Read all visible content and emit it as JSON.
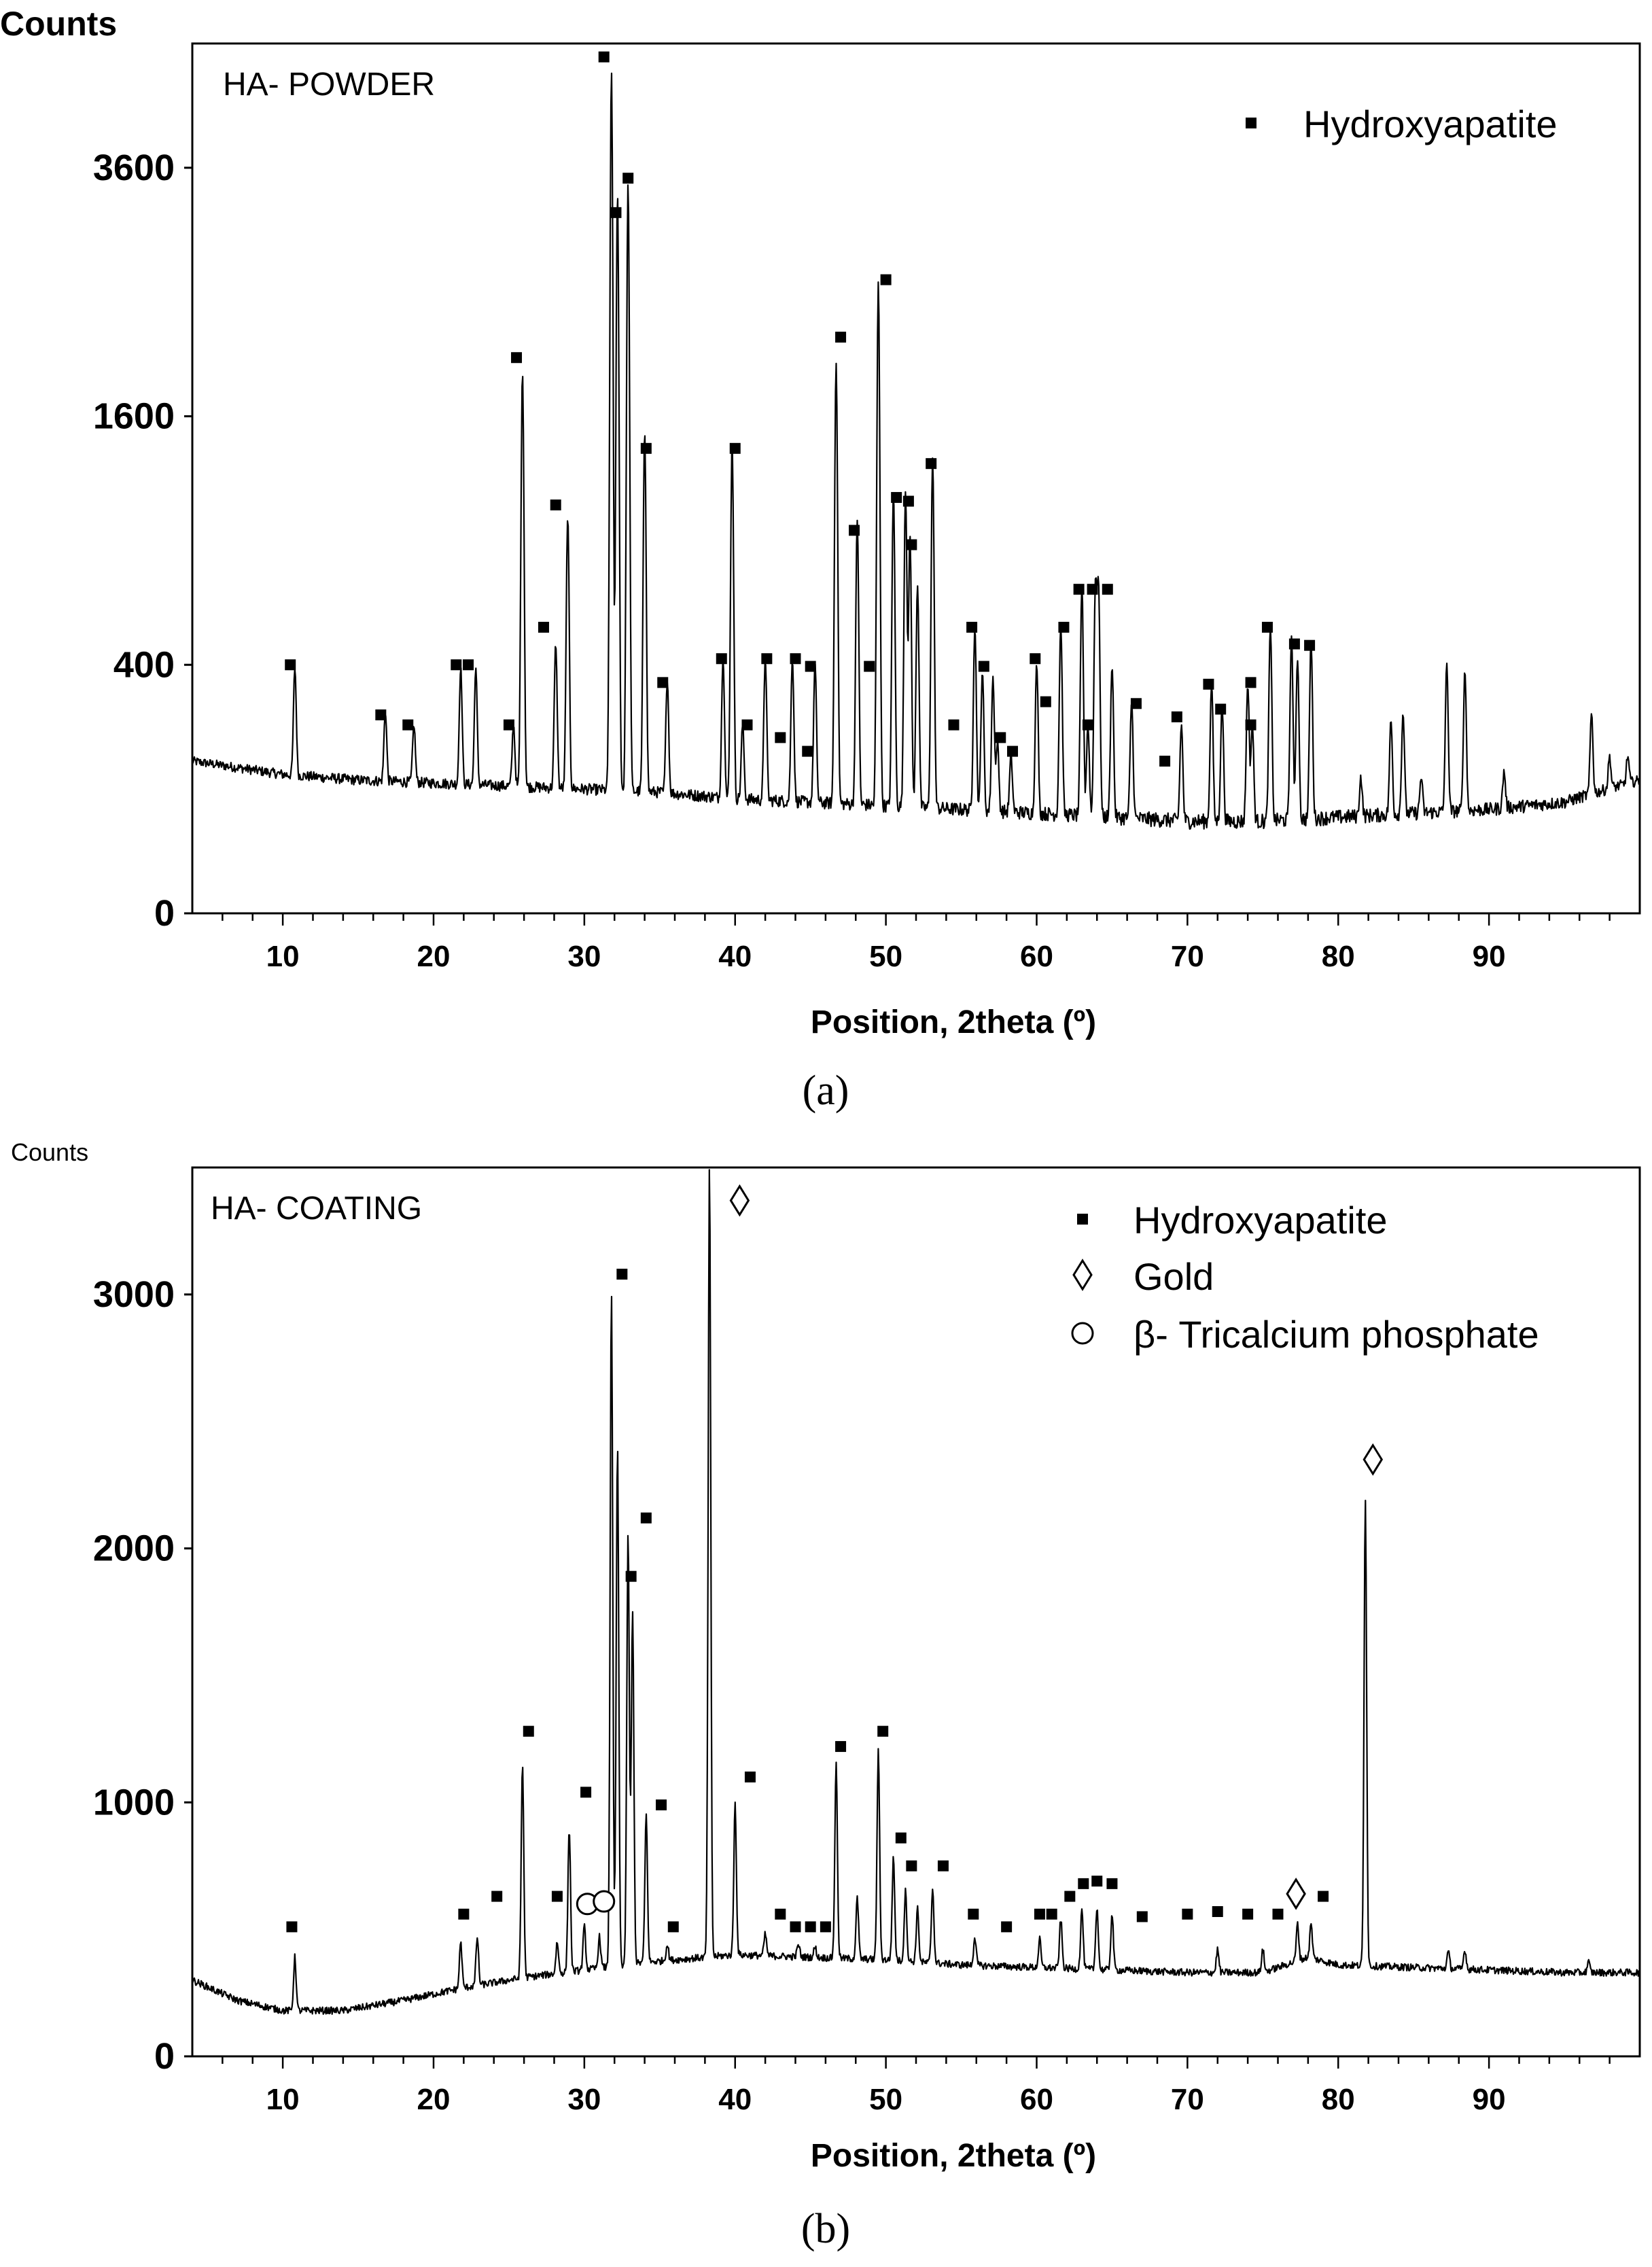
{
  "chart_data": [
    {
      "type": "line",
      "panel_id": "a",
      "caption": "(a)",
      "panel_label": "HA- POWDER",
      "ylabel": "Counts",
      "xlabel": "Position, 2theta (º)",
      "xlim": [
        4,
        100
      ],
      "y_scale": "sqrt",
      "ylim": [
        0,
        4900
      ],
      "yticks": [
        0,
        400,
        1600,
        3600
      ],
      "ytick_labels": [
        "0",
        "400",
        "1600",
        "3600"
      ],
      "xticks": [
        10,
        20,
        30,
        40,
        50,
        60,
        70,
        80,
        90
      ],
      "xtick_labels": [
        "10",
        "20",
        "30",
        "40",
        "50",
        "60",
        "70",
        "80",
        "90"
      ],
      "legend": [
        {
          "symbol": "square",
          "label": "Hydroxyapatite"
        }
      ],
      "baseline": [
        [
          4,
          150
        ],
        [
          10,
          125
        ],
        [
          15,
          115
        ],
        [
          20,
          110
        ],
        [
          25,
          105
        ],
        [
          30,
          100
        ],
        [
          35,
          95
        ],
        [
          40,
          85
        ],
        [
          45,
          80
        ],
        [
          50,
          75
        ],
        [
          55,
          70
        ],
        [
          60,
          65
        ],
        [
          65,
          60
        ],
        [
          70,
          55
        ],
        [
          75,
          55
        ],
        [
          80,
          60
        ],
        [
          85,
          65
        ],
        [
          90,
          70
        ],
        [
          95,
          80
        ],
        [
          100,
          115
        ]
      ],
      "peaks": [
        {
          "x": 10.8,
          "y": 390
        },
        {
          "x": 16.8,
          "y": 265
        },
        {
          "x": 18.7,
          "y": 230
        },
        {
          "x": 21.8,
          "y": 390
        },
        {
          "x": 22.8,
          "y": 390
        },
        {
          "x": 25.3,
          "y": 230
        },
        {
          "x": 25.9,
          "y": 1900
        },
        {
          "x": 28.1,
          "y": 470
        },
        {
          "x": 28.9,
          "y": 1020
        },
        {
          "x": 31.8,
          "y": 4600
        },
        {
          "x": 32.2,
          "y": 3350
        },
        {
          "x": 32.9,
          "y": 3450
        },
        {
          "x": 34.0,
          "y": 1500
        },
        {
          "x": 35.5,
          "y": 355
        },
        {
          "x": 39.2,
          "y": 420
        },
        {
          "x": 39.8,
          "y": 1430
        },
        {
          "x": 40.5,
          "y": 230
        },
        {
          "x": 42.0,
          "y": 420
        },
        {
          "x": 43.8,
          "y": 420
        },
        {
          "x": 45.3,
          "y": 400
        },
        {
          "x": 46.7,
          "y": 1970
        },
        {
          "x": 48.1,
          "y": 1000
        },
        {
          "x": 49.5,
          "y": 2580
        },
        {
          "x": 50.5,
          "y": 1150
        },
        {
          "x": 51.3,
          "y": 1150
        },
        {
          "x": 51.6,
          "y": 920
        },
        {
          "x": 52.1,
          "y": 700
        },
        {
          "x": 53.1,
          "y": 1340
        },
        {
          "x": 55.9,
          "y": 530
        },
        {
          "x": 56.4,
          "y": 380
        },
        {
          "x": 57.1,
          "y": 360
        },
        {
          "x": 57.4,
          "y": 190
        },
        {
          "x": 58.3,
          "y": 160
        },
        {
          "x": 60.0,
          "y": 400
        },
        {
          "x": 61.6,
          "y": 540
        },
        {
          "x": 63.0,
          "y": 690
        },
        {
          "x": 63.4,
          "y": 230
        },
        {
          "x": 63.9,
          "y": 690
        },
        {
          "x": 64.1,
          "y": 690
        },
        {
          "x": 65.0,
          "y": 400
        },
        {
          "x": 66.3,
          "y": 290
        },
        {
          "x": 69.6,
          "y": 230
        },
        {
          "x": 71.6,
          "y": 340
        },
        {
          "x": 72.3,
          "y": 280
        },
        {
          "x": 74.0,
          "y": 340
        },
        {
          "x": 74.3,
          "y": 230
        },
        {
          "x": 75.5,
          "y": 530
        },
        {
          "x": 76.9,
          "y": 490
        },
        {
          "x": 77.3,
          "y": 420
        },
        {
          "x": 78.2,
          "y": 480
        },
        {
          "x": 81.5,
          "y": 120
        },
        {
          "x": 83.5,
          "y": 240
        },
        {
          "x": 84.3,
          "y": 260
        },
        {
          "x": 85.5,
          "y": 120
        },
        {
          "x": 87.2,
          "y": 400
        },
        {
          "x": 88.4,
          "y": 380
        },
        {
          "x": 91.0,
          "y": 130
        },
        {
          "x": 96.8,
          "y": 260
        },
        {
          "x": 98.0,
          "y": 160
        },
        {
          "x": 99.2,
          "y": 160
        }
      ],
      "markers": [
        {
          "x": 10.5,
          "y": 400,
          "type": "hydroxyapatite"
        },
        {
          "x": 16.5,
          "y": 255,
          "type": "hydroxyapatite"
        },
        {
          "x": 18.3,
          "y": 230,
          "type": "hydroxyapatite"
        },
        {
          "x": 21.5,
          "y": 400,
          "type": "hydroxyapatite"
        },
        {
          "x": 22.3,
          "y": 400,
          "type": "hydroxyapatite"
        },
        {
          "x": 25.0,
          "y": 230,
          "type": "hydroxyapatite"
        },
        {
          "x": 25.5,
          "y": 2000,
          "type": "hydroxyapatite"
        },
        {
          "x": 27.3,
          "y": 530,
          "type": "hydroxyapatite"
        },
        {
          "x": 28.1,
          "y": 1080,
          "type": "hydroxyapatite"
        },
        {
          "x": 31.3,
          "y": 4750,
          "type": "hydroxyapatite"
        },
        {
          "x": 32.1,
          "y": 3180,
          "type": "hydroxyapatite"
        },
        {
          "x": 32.9,
          "y": 3500,
          "type": "hydroxyapatite"
        },
        {
          "x": 34.1,
          "y": 1400,
          "type": "hydroxyapatite"
        },
        {
          "x": 35.2,
          "y": 345,
          "type": "hydroxyapatite"
        },
        {
          "x": 39.1,
          "y": 420,
          "type": "hydroxyapatite"
        },
        {
          "x": 40.0,
          "y": 1400,
          "type": "hydroxyapatite"
        },
        {
          "x": 40.8,
          "y": 230,
          "type": "hydroxyapatite"
        },
        {
          "x": 42.1,
          "y": 420,
          "type": "hydroxyapatite"
        },
        {
          "x": 43.0,
          "y": 200,
          "type": "hydroxyapatite"
        },
        {
          "x": 44.0,
          "y": 420,
          "type": "hydroxyapatite"
        },
        {
          "x": 44.8,
          "y": 170,
          "type": "hydroxyapatite"
        },
        {
          "x": 45.0,
          "y": 395,
          "type": "hydroxyapatite"
        },
        {
          "x": 47.0,
          "y": 2150,
          "type": "hydroxyapatite"
        },
        {
          "x": 47.9,
          "y": 950,
          "type": "hydroxyapatite"
        },
        {
          "x": 48.9,
          "y": 395,
          "type": "hydroxyapatite"
        },
        {
          "x": 50.0,
          "y": 2600,
          "type": "hydroxyapatite"
        },
        {
          "x": 50.7,
          "y": 1120,
          "type": "hydroxyapatite"
        },
        {
          "x": 51.5,
          "y": 1100,
          "type": "hydroxyapatite"
        },
        {
          "x": 51.7,
          "y": 880,
          "type": "hydroxyapatite"
        },
        {
          "x": 53.0,
          "y": 1310,
          "type": "hydroxyapatite"
        },
        {
          "x": 54.5,
          "y": 230,
          "type": "hydroxyapatite"
        },
        {
          "x": 55.7,
          "y": 530,
          "type": "hydroxyapatite"
        },
        {
          "x": 56.5,
          "y": 395,
          "type": "hydroxyapatite"
        },
        {
          "x": 57.6,
          "y": 200,
          "type": "hydroxyapatite"
        },
        {
          "x": 58.4,
          "y": 170,
          "type": "hydroxyapatite"
        },
        {
          "x": 59.9,
          "y": 420,
          "type": "hydroxyapatite"
        },
        {
          "x": 60.6,
          "y": 290,
          "type": "hydroxyapatite"
        },
        {
          "x": 61.8,
          "y": 530,
          "type": "hydroxyapatite"
        },
        {
          "x": 62.8,
          "y": 680,
          "type": "hydroxyapatite"
        },
        {
          "x": 63.4,
          "y": 230,
          "type": "hydroxyapatite"
        },
        {
          "x": 63.7,
          "y": 680,
          "type": "hydroxyapatite"
        },
        {
          "x": 64.7,
          "y": 680,
          "type": "hydroxyapatite"
        },
        {
          "x": 66.6,
          "y": 285,
          "type": "hydroxyapatite"
        },
        {
          "x": 68.5,
          "y": 150,
          "type": "hydroxyapatite"
        },
        {
          "x": 69.3,
          "y": 250,
          "type": "hydroxyapatite"
        },
        {
          "x": 71.4,
          "y": 340,
          "type": "hydroxyapatite"
        },
        {
          "x": 72.2,
          "y": 270,
          "type": "hydroxyapatite"
        },
        {
          "x": 74.2,
          "y": 345,
          "type": "hydroxyapatite"
        },
        {
          "x": 74.2,
          "y": 230,
          "type": "hydroxyapatite"
        },
        {
          "x": 75.3,
          "y": 530,
          "type": "hydroxyapatite"
        },
        {
          "x": 77.1,
          "y": 470,
          "type": "hydroxyapatite"
        },
        {
          "x": 78.1,
          "y": 465,
          "type": "hydroxyapatite"
        }
      ]
    },
    {
      "type": "line",
      "panel_id": "b",
      "caption": "(b)",
      "panel_label": "HA- COATING",
      "ylabel": "Counts",
      "xlabel": "Position, 2theta (º)",
      "xlim": [
        4,
        100
      ],
      "y_scale": "linear",
      "ylim": [
        0,
        3500
      ],
      "yticks": [
        0,
        1000,
        2000,
        3000
      ],
      "ytick_labels": [
        "0",
        "1000",
        "2000",
        "3000"
      ],
      "xticks": [
        10,
        20,
        30,
        40,
        50,
        60,
        70,
        80,
        90
      ],
      "xtick_labels": [
        "10",
        "20",
        "30",
        "40",
        "50",
        "60",
        "70",
        "80",
        "90"
      ],
      "legend": [
        {
          "symbol": "square",
          "label": "Hydroxyapatite"
        },
        {
          "symbol": "diamond",
          "label": "Gold"
        },
        {
          "symbol": "circle",
          "label": "β- Tricalcium phosphate"
        }
      ],
      "baseline": [
        [
          4,
          300
        ],
        [
          7,
          220
        ],
        [
          10,
          180
        ],
        [
          14,
          180
        ],
        [
          18,
          220
        ],
        [
          22,
          270
        ],
        [
          26,
          310
        ],
        [
          30,
          340
        ],
        [
          34,
          370
        ],
        [
          40,
          400
        ],
        [
          45,
          390
        ],
        [
          50,
          380
        ],
        [
          55,
          360
        ],
        [
          60,
          350
        ],
        [
          65,
          340
        ],
        [
          70,
          330
        ],
        [
          75,
          330
        ],
        [
          78,
          390
        ],
        [
          80,
          360
        ],
        [
          85,
          350
        ],
        [
          90,
          340
        ],
        [
          95,
          330
        ],
        [
          100,
          330
        ]
      ],
      "peaks": [
        {
          "x": 10.8,
          "y": 390
        },
        {
          "x": 21.8,
          "y": 450
        },
        {
          "x": 22.9,
          "y": 470
        },
        {
          "x": 25.9,
          "y": 1150
        },
        {
          "x": 28.2,
          "y": 450
        },
        {
          "x": 29.0,
          "y": 900
        },
        {
          "x": 30.0,
          "y": 510
        },
        {
          "x": 31.0,
          "y": 470
        },
        {
          "x": 31.8,
          "y": 3000
        },
        {
          "x": 32.2,
          "y": 2400
        },
        {
          "x": 32.9,
          "y": 2050
        },
        {
          "x": 33.2,
          "y": 1750
        },
        {
          "x": 34.1,
          "y": 950
        },
        {
          "x": 35.5,
          "y": 440
        },
        {
          "x": 38.3,
          "y": 3500
        },
        {
          "x": 40.0,
          "y": 1000
        },
        {
          "x": 42.0,
          "y": 480
        },
        {
          "x": 44.2,
          "y": 440
        },
        {
          "x": 45.3,
          "y": 430
        },
        {
          "x": 46.7,
          "y": 1150
        },
        {
          "x": 48.1,
          "y": 620
        },
        {
          "x": 49.5,
          "y": 1200
        },
        {
          "x": 50.5,
          "y": 780
        },
        {
          "x": 51.3,
          "y": 650
        },
        {
          "x": 52.1,
          "y": 580
        },
        {
          "x": 53.1,
          "y": 660
        },
        {
          "x": 55.9,
          "y": 470
        },
        {
          "x": 60.2,
          "y": 460
        },
        {
          "x": 61.6,
          "y": 540
        },
        {
          "x": 63.0,
          "y": 580
        },
        {
          "x": 64.0,
          "y": 590
        },
        {
          "x": 65.0,
          "y": 560
        },
        {
          "x": 72.0,
          "y": 420
        },
        {
          "x": 75.0,
          "y": 420
        },
        {
          "x": 77.3,
          "y": 520
        },
        {
          "x": 78.2,
          "y": 520
        },
        {
          "x": 81.8,
          "y": 2200
        },
        {
          "x": 87.3,
          "y": 410
        },
        {
          "x": 88.4,
          "y": 420
        },
        {
          "x": 96.6,
          "y": 370
        }
      ],
      "markers": [
        {
          "x": 10.6,
          "y": 510,
          "type": "hydroxyapatite"
        },
        {
          "x": 22.0,
          "y": 560,
          "type": "hydroxyapatite"
        },
        {
          "x": 24.2,
          "y": 630,
          "type": "hydroxyapatite"
        },
        {
          "x": 26.3,
          "y": 1280,
          "type": "hydroxyapatite"
        },
        {
          "x": 28.2,
          "y": 630,
          "type": "hydroxyapatite"
        },
        {
          "x": 30.1,
          "y": 1040,
          "type": "hydroxyapatite"
        },
        {
          "x": 32.5,
          "y": 3080,
          "type": "hydroxyapatite"
        },
        {
          "x": 33.1,
          "y": 1890,
          "type": "hydroxyapatite"
        },
        {
          "x": 34.1,
          "y": 2120,
          "type": "hydroxyapatite"
        },
        {
          "x": 35.1,
          "y": 990,
          "type": "hydroxyapatite"
        },
        {
          "x": 35.9,
          "y": 510,
          "type": "hydroxyapatite"
        },
        {
          "x": 41.0,
          "y": 1100,
          "type": "hydroxyapatite"
        },
        {
          "x": 43.0,
          "y": 560,
          "type": "hydroxyapatite"
        },
        {
          "x": 44.0,
          "y": 510,
          "type": "hydroxyapatite"
        },
        {
          "x": 45.0,
          "y": 510,
          "type": "hydroxyapatite"
        },
        {
          "x": 46.0,
          "y": 510,
          "type": "hydroxyapatite"
        },
        {
          "x": 47.0,
          "y": 1220,
          "type": "hydroxyapatite"
        },
        {
          "x": 49.8,
          "y": 1280,
          "type": "hydroxyapatite"
        },
        {
          "x": 51.0,
          "y": 860,
          "type": "hydroxyapatite"
        },
        {
          "x": 51.7,
          "y": 750,
          "type": "hydroxyapatite"
        },
        {
          "x": 53.8,
          "y": 750,
          "type": "hydroxyapatite"
        },
        {
          "x": 55.8,
          "y": 560,
          "type": "hydroxyapatite"
        },
        {
          "x": 58.0,
          "y": 510,
          "type": "hydroxyapatite"
        },
        {
          "x": 60.2,
          "y": 560,
          "type": "hydroxyapatite"
        },
        {
          "x": 61.0,
          "y": 560,
          "type": "hydroxyapatite"
        },
        {
          "x": 62.2,
          "y": 630,
          "type": "hydroxyapatite"
        },
        {
          "x": 63.1,
          "y": 680,
          "type": "hydroxyapatite"
        },
        {
          "x": 64.0,
          "y": 690,
          "type": "hydroxyapatite"
        },
        {
          "x": 65.0,
          "y": 680,
          "type": "hydroxyapatite"
        },
        {
          "x": 67.0,
          "y": 550,
          "type": "hydroxyapatite"
        },
        {
          "x": 70.0,
          "y": 560,
          "type": "hydroxyapatite"
        },
        {
          "x": 72.0,
          "y": 570,
          "type": "hydroxyapatite"
        },
        {
          "x": 74.0,
          "y": 560,
          "type": "hydroxyapatite"
        },
        {
          "x": 76.0,
          "y": 560,
          "type": "hydroxyapatite"
        },
        {
          "x": 79.0,
          "y": 630,
          "type": "hydroxyapatite"
        },
        {
          "x": 40.3,
          "y": 3370,
          "type": "gold"
        },
        {
          "x": 77.2,
          "y": 640,
          "type": "gold"
        },
        {
          "x": 82.3,
          "y": 2350,
          "type": "gold"
        },
        {
          "x": 30.2,
          "y": 600,
          "type": "tcp"
        },
        {
          "x": 31.3,
          "y": 610,
          "type": "tcp"
        }
      ]
    }
  ]
}
